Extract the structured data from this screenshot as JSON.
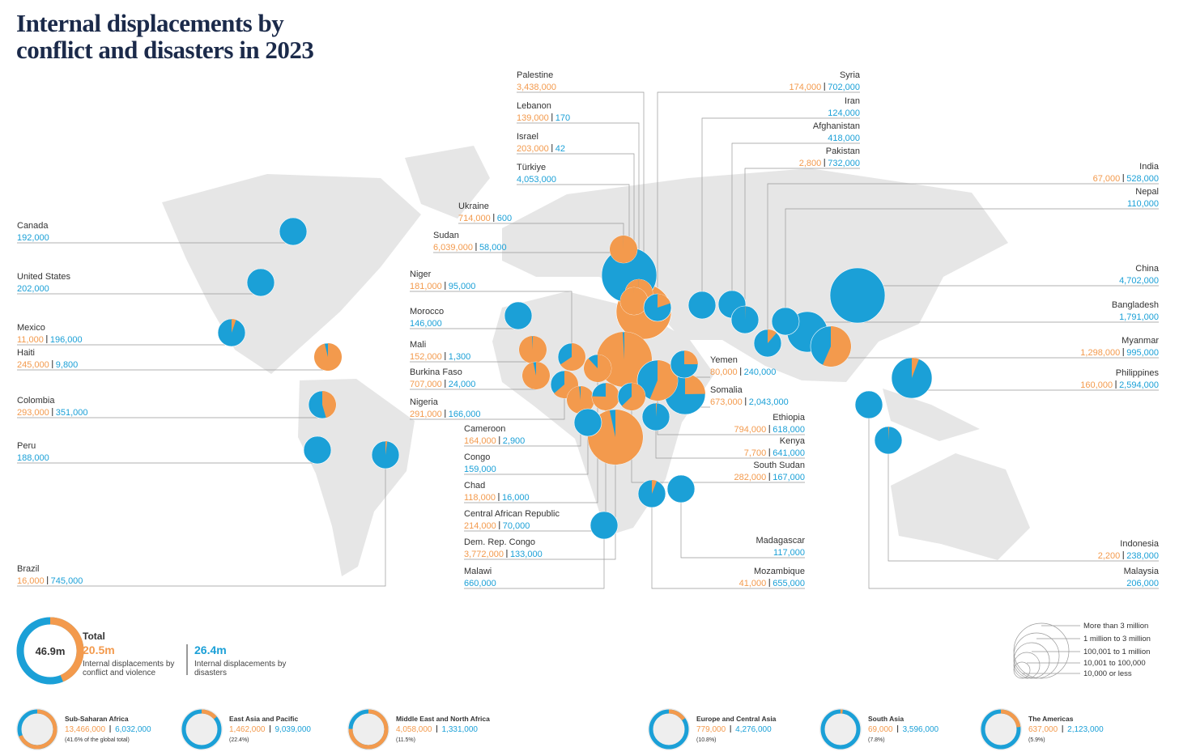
{
  "title": "Internal displacements by conflict and disasters in 2023",
  "countries": [
    {
      "name": "Canada",
      "disasters": "192,000"
    },
    {
      "name": "United States",
      "disasters": "202,000"
    },
    {
      "name": "Mexico",
      "conflict": "11,000",
      "disasters": "196,000"
    },
    {
      "name": "Haiti",
      "conflict": "245,000",
      "disasters": "9,800"
    },
    {
      "name": "Colombia",
      "conflict": "293,000",
      "disasters": "351,000"
    },
    {
      "name": "Peru",
      "disasters": "188,000"
    },
    {
      "name": "Brazil",
      "conflict": "16,000",
      "disasters": "745,000"
    },
    {
      "name": "Palestine",
      "conflict": "3,438,000"
    },
    {
      "name": "Lebanon",
      "conflict": "139,000",
      "disasters": "170"
    },
    {
      "name": "Israel",
      "conflict": "203,000",
      "disasters": "42"
    },
    {
      "name": "Türkiye",
      "disasters": "4,053,000"
    },
    {
      "name": "Ukraine",
      "conflict": "714,000",
      "disasters": "600"
    },
    {
      "name": "Sudan",
      "conflict": "6,039,000",
      "disasters": "58,000"
    },
    {
      "name": "Niger",
      "conflict": "181,000",
      "disasters": "95,000"
    },
    {
      "name": "Morocco",
      "disasters": "146,000"
    },
    {
      "name": "Mali",
      "conflict": "152,000",
      "disasters": "1,300"
    },
    {
      "name": "Burkina Faso",
      "conflict": "707,000",
      "disasters": "24,000"
    },
    {
      "name": "Nigeria",
      "conflict": "291,000",
      "disasters": "166,000"
    },
    {
      "name": "Cameroon",
      "conflict": "164,000",
      "disasters": "2,900"
    },
    {
      "name": "Congo",
      "disasters": "159,000"
    },
    {
      "name": "Chad",
      "conflict": "118,000",
      "disasters": "16,000"
    },
    {
      "name": "Central African Republic",
      "conflict": "214,000",
      "disasters": "70,000"
    },
    {
      "name": "Dem. Rep. Congo",
      "conflict": "3,772,000",
      "disasters": "133,000"
    },
    {
      "name": "Malawi",
      "disasters": "660,000"
    },
    {
      "name": "Syria",
      "conflict": "174,000",
      "disasters": "702,000"
    },
    {
      "name": "Iran",
      "disasters": "124,000"
    },
    {
      "name": "Afghanistan",
      "disasters": "418,000"
    },
    {
      "name": "Pakistan",
      "conflict": "2,800",
      "disasters": "732,000"
    },
    {
      "name": "Yemen",
      "conflict": "80,000",
      "disasters": "240,000"
    },
    {
      "name": "Somalia",
      "conflict": "673,000",
      "disasters": "2,043,000"
    },
    {
      "name": "Ethiopia",
      "conflict": "794,000",
      "disasters": "618,000"
    },
    {
      "name": "Kenya",
      "conflict": "7,700",
      "disasters": "641,000"
    },
    {
      "name": "South Sudan",
      "conflict": "282,000",
      "disasters": "167,000"
    },
    {
      "name": "Madagascar",
      "disasters": "117,000"
    },
    {
      "name": "Mozambique",
      "conflict": "41,000",
      "disasters": "655,000"
    },
    {
      "name": "India",
      "conflict": "67,000",
      "disasters": "528,000"
    },
    {
      "name": "Nepal",
      "disasters": "110,000"
    },
    {
      "name": "China",
      "disasters": "4,702,000"
    },
    {
      "name": "Bangladesh",
      "disasters": "1,791,000"
    },
    {
      "name": "Myanmar",
      "conflict": "1,298,000",
      "disasters": "995,000"
    },
    {
      "name": "Philippines",
      "conflict": "160,000",
      "disasters": "2,594,000"
    },
    {
      "name": "Indonesia",
      "conflict": "2,200",
      "disasters": "238,000"
    },
    {
      "name": "Malaysia",
      "disasters": "206,000"
    }
  ],
  "total": {
    "label": "Total",
    "value": "46.9m",
    "conflict": {
      "value": "20.5m",
      "label": "Internal displacements by conflict and violence"
    },
    "disasters": {
      "value": "26.4m",
      "label": "Internal displacements by disasters"
    }
  },
  "legend": [
    "More than 3 million",
    "1 million to 3 million",
    "100,001 to 1 million",
    "10,001 to 100,000",
    "10,000 or less"
  ],
  "regions": [
    {
      "name": "Sub-Saharan Africa",
      "conflict": "13,466,000",
      "disasters": "6,032,000",
      "share": "(41.6% of the global total)"
    },
    {
      "name": "East Asia and Pacific",
      "conflict": "1,462,000",
      "disasters": "9,039,000",
      "share": "(22.4%)"
    },
    {
      "name": "Middle East and North Africa",
      "conflict": "4,058,000",
      "disasters": "1,331,000",
      "share": "(11.5%)"
    },
    {
      "name": "Europe and Central Asia",
      "conflict": "779,000",
      "disasters": "4,276,000",
      "share": "(10.8%)"
    },
    {
      "name": "South Asia",
      "conflict": "69,000",
      "disasters": "3,596,000",
      "share": "(7.8%)"
    },
    {
      "name": "The Americas",
      "conflict": "637,000",
      "disasters": "2,123,000",
      "share": "(5.9%)"
    }
  ]
}
